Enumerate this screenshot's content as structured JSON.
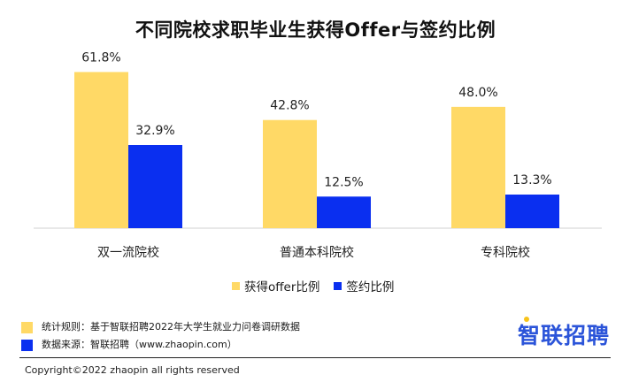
{
  "chart_data": {
    "type": "bar",
    "title": "不同院校求职毕业生获得Offer与签约比例",
    "categories": [
      "双一流院校",
      "普通本科院校",
      "专科院校"
    ],
    "series": [
      {
        "name": "获得offer比例",
        "values": [
          61.8,
          42.8,
          48.0
        ],
        "labels": [
          "61.8%",
          "42.8%",
          "48.0%"
        ],
        "color": "#ffd966"
      },
      {
        "name": "签约比例",
        "values": [
          32.9,
          12.5,
          13.3
        ],
        "labels": [
          "32.9%",
          "12.5%",
          "13.3%"
        ],
        "color": "#0a2ff0"
      }
    ],
    "ylim": [
      0,
      70
    ],
    "grid": false,
    "legend_position": "bottom"
  },
  "notes": {
    "rule": "统计规则：基于智联招聘2022年大学生就业力问卷调研数据",
    "source": "数据来源：智联招聘（www.zhaopin.com）"
  },
  "copyright": "Copyright©2022 zhaopin all rights reserved",
  "logo_text": "智联招聘"
}
